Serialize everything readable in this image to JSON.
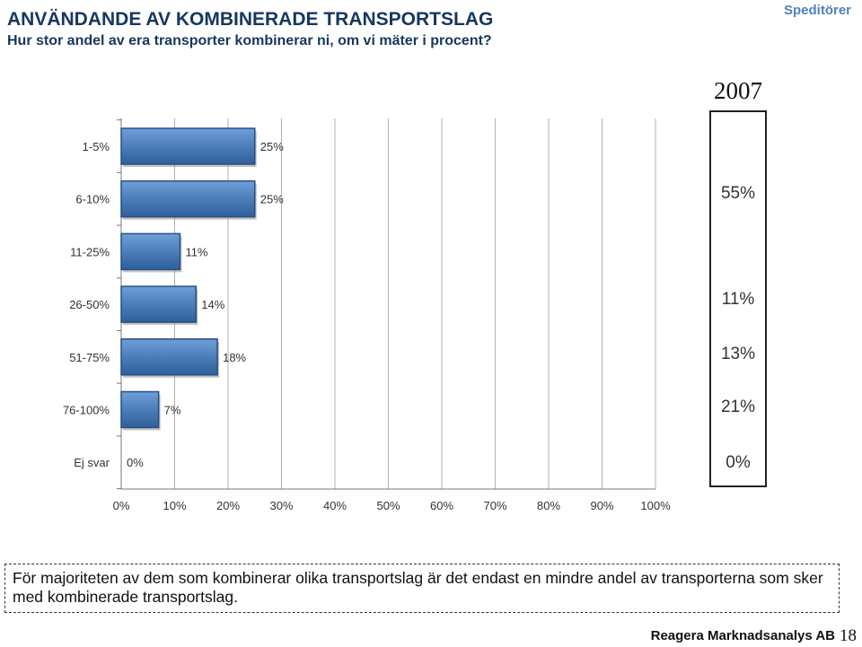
{
  "header": {
    "title": "ANVÄNDANDE AV KOMBINERADE TRANSPORTSLAG",
    "subtitle": "Hur stor andel av era transporter kombinerar ni, om vi mäter i procent?",
    "tag": "Speditörer"
  },
  "chart_data": {
    "type": "bar",
    "orientation": "horizontal",
    "categories": [
      "1-5%",
      "6-10%",
      "11-25%",
      "26-50%",
      "51-75%",
      "76-100%",
      "Ej svar"
    ],
    "values": [
      25,
      25,
      11,
      14,
      18,
      7,
      0
    ],
    "value_labels": [
      "25%",
      "25%",
      "11%",
      "14%",
      "18%",
      "7%",
      "0%"
    ],
    "xlim": [
      0,
      100
    ],
    "xticks": [
      "0%",
      "10%",
      "20%",
      "30%",
      "40%",
      "50%",
      "60%",
      "70%",
      "80%",
      "90%",
      "100%"
    ],
    "grid": true,
    "bar_color": "#4f81bd"
  },
  "comparison": {
    "year": "2007",
    "values": [
      "55%",
      "11%",
      "13%",
      "21%",
      "0%"
    ]
  },
  "note": "För majoriteten av dem som kombinerar olika transportslag är det endast en mindre andel av transporterna som sker med kombinerade transportslag.",
  "footer": {
    "brand": "Reagera Marknadsanalys AB",
    "page": "18"
  }
}
